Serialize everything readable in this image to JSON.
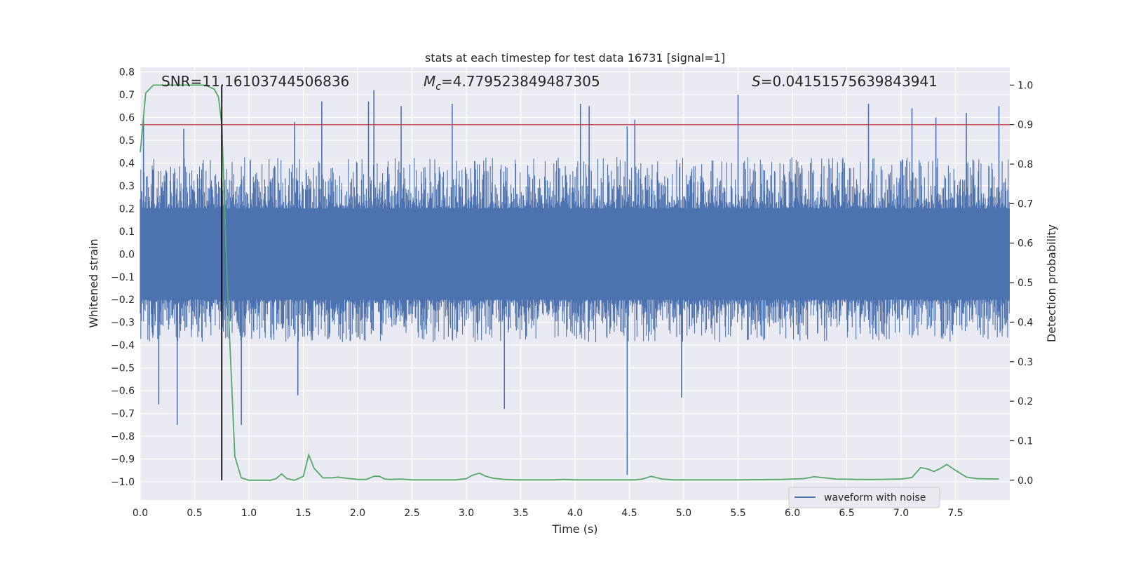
{
  "chart_data": {
    "type": "line",
    "title": "stats at each timestep for test data 16731 [signal=1]",
    "xlabel": "Time (s)",
    "ylabel": "Whitened strain",
    "y2label": "Detection probability",
    "xlim": [
      0.0,
      8.0
    ],
    "ylim": [
      -1.08,
      0.82
    ],
    "y2lim": [
      -0.05,
      1.045
    ],
    "x_ticks": [
      0.0,
      0.5,
      1.0,
      1.5,
      2.0,
      2.5,
      3.0,
      3.5,
      4.0,
      4.5,
      5.0,
      5.5,
      6.0,
      6.5,
      7.0,
      7.5
    ],
    "x_tick_labels": [
      "0.0",
      "0.5",
      "1.0",
      "1.5",
      "2.0",
      "2.5",
      "3.0",
      "3.5",
      "4.0",
      "4.5",
      "5.0",
      "5.5",
      "6.0",
      "6.5",
      "7.0",
      "7.5"
    ],
    "y_ticks": [
      0.8,
      0.7,
      0.6,
      0.5,
      0.4,
      0.3,
      0.2,
      0.1,
      0.0,
      -0.1,
      -0.2,
      -0.3,
      -0.4,
      -0.5,
      -0.6,
      -0.7,
      -0.8,
      -0.9,
      -1.0
    ],
    "y_tick_labels": [
      "0.8",
      "0.7",
      "0.6",
      "0.5",
      "0.4",
      "0.3",
      "0.2",
      "0.1",
      "0.0",
      "−0.1",
      "−0.2",
      "−0.3",
      "−0.4",
      "−0.5",
      "−0.6",
      "−0.7",
      "−0.8",
      "−0.9",
      "−1.0"
    ],
    "y2_ticks": [
      1.0,
      0.9,
      0.8,
      0.7,
      0.6,
      0.5,
      0.4,
      0.3,
      0.2,
      0.1,
      0.0
    ],
    "y2_tick_labels": [
      "1.0",
      "0.9",
      "0.8",
      "0.7",
      "0.6",
      "0.5",
      "0.4",
      "0.3",
      "0.2",
      "0.1",
      "0.0"
    ],
    "grid": true,
    "legend_position": "bottom-right",
    "annotations": {
      "snr": "SNR=11.16103744506836",
      "mc_symbol": "M",
      "mc_sub": "c",
      "mc_value": "=4.779523849487305",
      "s_symbol": "S",
      "s_value": "=0.04151575639843941"
    },
    "threshold_y2": 0.9,
    "event_time": 0.75,
    "series": [
      {
        "name": "waveform with noise",
        "color": "#4c72b0",
        "style": "dense noise envelope",
        "time_range": [
          0.0,
          8.0
        ],
        "core_band": [
          -0.2,
          0.2
        ],
        "typical_envelope": [
          -0.35,
          0.38
        ],
        "spikes": [
          [
            0.03,
            0.6
          ],
          [
            0.17,
            -0.66
          ],
          [
            0.34,
            -0.75
          ],
          [
            0.4,
            0.55
          ],
          [
            0.93,
            -0.75
          ],
          [
            1.42,
            0.58
          ],
          [
            1.45,
            -0.62
          ],
          [
            1.67,
            0.67
          ],
          [
            2.1,
            0.67
          ],
          [
            2.15,
            0.72
          ],
          [
            2.4,
            0.65
          ],
          [
            2.87,
            0.66
          ],
          [
            3.35,
            -0.68
          ],
          [
            4.05,
            0.66
          ],
          [
            4.13,
            0.65
          ],
          [
            4.48,
            -0.97
          ],
          [
            4.48,
            0.56
          ],
          [
            4.55,
            0.59
          ],
          [
            4.98,
            -0.63
          ],
          [
            5.5,
            0.7
          ],
          [
            6.7,
            0.66
          ],
          [
            7.1,
            0.64
          ],
          [
            7.32,
            0.6
          ],
          [
            7.6,
            0.62
          ],
          [
            7.9,
            0.65
          ]
        ]
      },
      {
        "name": "",
        "color": "#55a868",
        "axis": "y2",
        "x": [
          0.0,
          0.05,
          0.12,
          0.2,
          0.3,
          0.4,
          0.5,
          0.6,
          0.68,
          0.72,
          0.75,
          0.8,
          0.87,
          0.93,
          1.0,
          1.1,
          1.2,
          1.25,
          1.3,
          1.35,
          1.42,
          1.5,
          1.55,
          1.6,
          1.68,
          1.76,
          1.82,
          1.9,
          2.0,
          2.08,
          2.15,
          2.2,
          2.25,
          2.3,
          2.4,
          2.5,
          2.6,
          2.7,
          2.8,
          2.9,
          3.0,
          3.05,
          3.12,
          3.18,
          3.25,
          3.35,
          3.45,
          3.6,
          3.8,
          3.9,
          4.0,
          4.2,
          4.45,
          4.55,
          4.62,
          4.7,
          4.8,
          4.9,
          5.1,
          5.5,
          5.9,
          6.1,
          6.2,
          6.3,
          6.4,
          6.6,
          6.8,
          7.0,
          7.1,
          7.18,
          7.25,
          7.3,
          7.35,
          7.42,
          7.5,
          7.6,
          7.7,
          7.9
        ],
        "values": [
          0.83,
          0.98,
          1.0,
          1.0,
          1.0,
          1.0,
          1.0,
          1.0,
          0.99,
          0.97,
          0.9,
          0.5,
          0.06,
          0.006,
          0.0,
          0.0,
          0.0,
          0.004,
          0.016,
          0.004,
          0.0,
          0.01,
          0.064,
          0.03,
          0.006,
          0.006,
          0.008,
          0.005,
          0.002,
          0.002,
          0.01,
          0.01,
          0.003,
          0.002,
          0.003,
          0.001,
          0.001,
          0.001,
          0.001,
          0.001,
          0.004,
          0.012,
          0.018,
          0.01,
          0.005,
          0.002,
          0.001,
          0.001,
          0.001,
          0.002,
          0.001,
          0.001,
          0.001,
          0.001,
          0.003,
          0.01,
          0.003,
          0.001,
          0.001,
          0.001,
          0.002,
          0.004,
          0.009,
          0.006,
          0.003,
          0.002,
          0.002,
          0.003,
          0.007,
          0.032,
          0.028,
          0.022,
          0.028,
          0.04,
          0.025,
          0.008,
          0.004,
          0.003
        ]
      }
    ],
    "threshold_color": "#c44e52",
    "event_line_color": "#000000"
  }
}
